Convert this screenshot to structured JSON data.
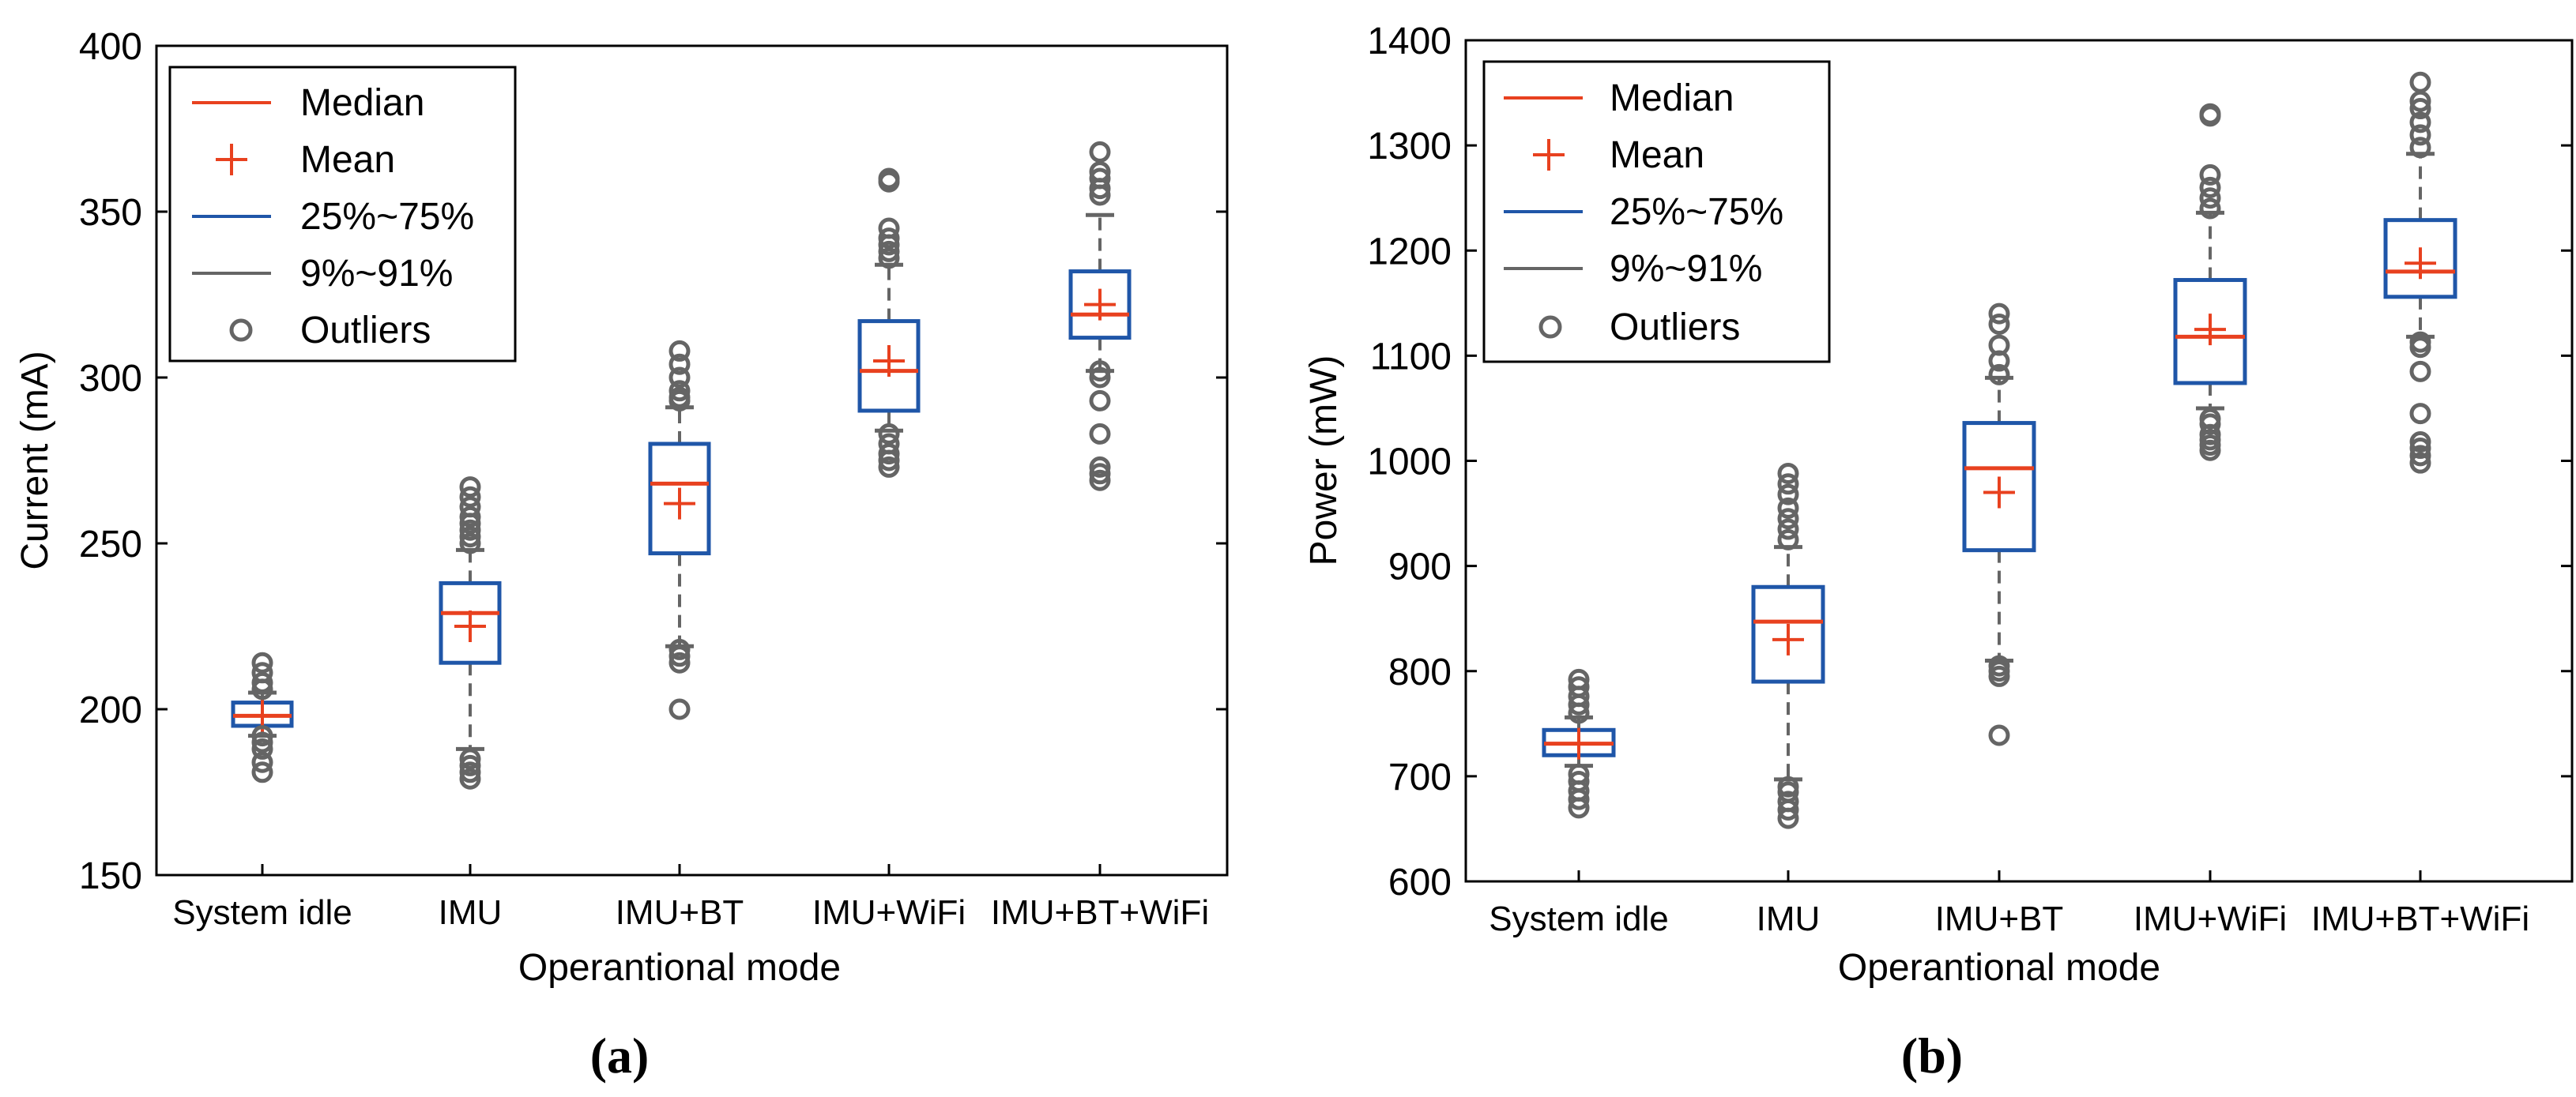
{
  "colors": {
    "median": "#e8411f",
    "mean": "#e8411f",
    "box": "#1f56a8",
    "whisker": "#656565",
    "outlier": "#656565",
    "axis": "#000000"
  },
  "legend": {
    "median": "Median",
    "mean": "Mean",
    "box": "25%~75%",
    "whisker": "9%~91%",
    "outliers": "Outliers"
  },
  "chart_data": [
    {
      "type": "box",
      "panel_label": "(a)",
      "title": "",
      "xlabel": "Operantional mode",
      "ylabel": "Current (mA)",
      "ylim": [
        150,
        400
      ],
      "yticks": [
        150,
        200,
        250,
        300,
        350,
        400
      ],
      "ytick_labels": [
        "150",
        "200",
        "250",
        "300",
        "350",
        "400"
      ],
      "legend_position": "top-left",
      "categories": [
        "System idle",
        "IMU",
        "IMU+BT",
        "IMU+WiFi",
        "IMU+BT+WiFi"
      ],
      "boxes": [
        {
          "q1": 195,
          "median": 198,
          "q3": 202,
          "mean": 198,
          "whisker_low": 192,
          "whisker_high": 205,
          "outliers": [
            181,
            184,
            188,
            190,
            192,
            206,
            208,
            211,
            214
          ]
        },
        {
          "q1": 214,
          "median": 229,
          "q3": 238,
          "mean": 225,
          "whisker_low": 188,
          "whisker_high": 248,
          "outliers": [
            179,
            181,
            183,
            185,
            250,
            252,
            254,
            256,
            258,
            261,
            264,
            267
          ]
        },
        {
          "q1": 247,
          "median": 268,
          "q3": 280,
          "mean": 262,
          "whisker_low": 219,
          "whisker_high": 291,
          "outliers": [
            200,
            214,
            216,
            218,
            293,
            294,
            296,
            300,
            304,
            308
          ]
        },
        {
          "q1": 290,
          "median": 302,
          "q3": 317,
          "mean": 305,
          "whisker_low": 284,
          "whisker_high": 334,
          "outliers": [
            273,
            275,
            277,
            280,
            283,
            336,
            338,
            340,
            342,
            345,
            359,
            360
          ]
        },
        {
          "q1": 312,
          "median": 319,
          "q3": 332,
          "mean": 322,
          "whisker_low": 302,
          "whisker_high": 349,
          "outliers": [
            269,
            271,
            273,
            283,
            293,
            300,
            302,
            355,
            357,
            360,
            362,
            368
          ]
        }
      ]
    },
    {
      "type": "box",
      "panel_label": "(b)",
      "title": "",
      "xlabel": "Operantional mode",
      "ylabel": "Power (mW)",
      "ylim": [
        600,
        1400
      ],
      "yticks": [
        600,
        700,
        800,
        900,
        1000,
        1100,
        1200,
        1300,
        1400
      ],
      "ytick_labels": [
        "600",
        "700",
        "800",
        "900",
        "1000",
        "1100",
        "1200",
        "1300",
        "1400"
      ],
      "legend_position": "top-left",
      "categories": [
        "System idle",
        "IMU",
        "IMU+BT",
        "IMU+WiFi",
        "IMU+BT+WiFi"
      ],
      "boxes": [
        {
          "q1": 720,
          "median": 731,
          "q3": 744,
          "mean": 731,
          "whisker_low": 710,
          "whisker_high": 756,
          "outliers": [
            670,
            678,
            686,
            695,
            702,
            760,
            768,
            776,
            785,
            792
          ]
        },
        {
          "q1": 790,
          "median": 847,
          "q3": 880,
          "mean": 830,
          "whisker_low": 697,
          "whisker_high": 918,
          "outliers": [
            660,
            668,
            676,
            685,
            690,
            925,
            935,
            945,
            955,
            968,
            978,
            988
          ]
        },
        {
          "q1": 915,
          "median": 993,
          "q3": 1036,
          "mean": 970,
          "whisker_low": 810,
          "whisker_high": 1079,
          "outliers": [
            739,
            795,
            800,
            805,
            1082,
            1095,
            1110,
            1130,
            1140
          ]
        },
        {
          "q1": 1074,
          "median": 1118,
          "q3": 1172,
          "mean": 1125,
          "whisker_low": 1050,
          "whisker_high": 1236,
          "outliers": [
            1010,
            1015,
            1020,
            1025,
            1035,
            1040,
            1240,
            1250,
            1260,
            1272,
            1328,
            1330
          ]
        },
        {
          "q1": 1156,
          "median": 1180,
          "q3": 1229,
          "mean": 1188,
          "whisker_low": 1118,
          "whisker_high": 1292,
          "outliers": [
            998,
            1005,
            1012,
            1018,
            1045,
            1085,
            1108,
            1113,
            1298,
            1310,
            1322,
            1335,
            1342,
            1360
          ]
        }
      ]
    }
  ]
}
